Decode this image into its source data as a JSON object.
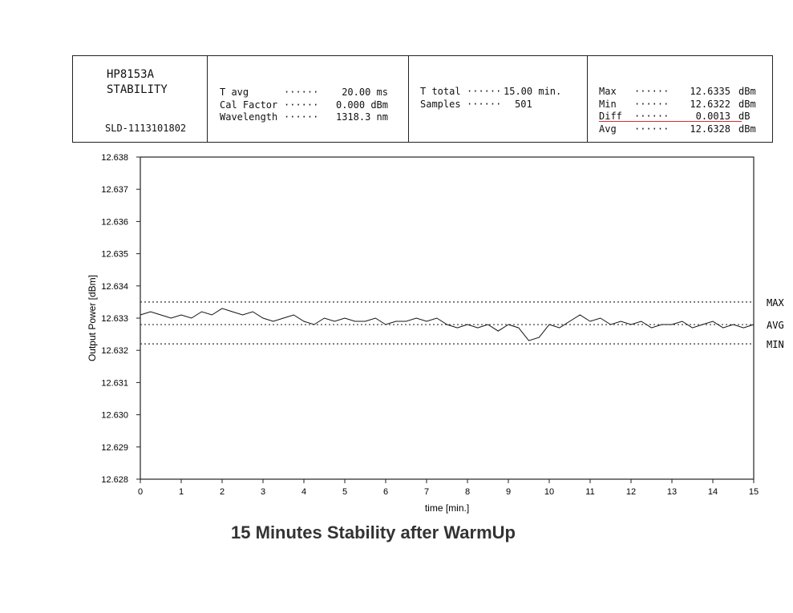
{
  "header": {
    "device": {
      "model": "HP8153A",
      "mode": "STABILITY",
      "serial": "SLD-1113101802"
    },
    "acquisition": [
      {
        "label": "T avg",
        "dots": "······",
        "value": "20.00 ms"
      },
      {
        "label": "Cal Factor",
        "dots": "······",
        "value": "0.000 dBm"
      },
      {
        "label": "Wavelength",
        "dots": "······",
        "value": "1318.3 nm"
      }
    ],
    "timing": [
      {
        "label": "T total",
        "dots": "······",
        "value": "15.00 min."
      },
      {
        "label": "Samples",
        "dots": "······",
        "value": "501"
      }
    ],
    "stats": [
      {
        "label": "Max",
        "dots": "······",
        "value": "12.6335",
        "unit": "dBm"
      },
      {
        "label": "Min",
        "dots": "······",
        "value": "12.6322",
        "unit": "dBm"
      },
      {
        "label": "Diff",
        "dots": "······",
        "value": "0.0013",
        "unit": "dB"
      },
      {
        "label": "Avg",
        "dots": "······",
        "value": "12.6328",
        "unit": "dBm"
      }
    ],
    "diff_highlight_color": "#d03030"
  },
  "chart_data": {
    "type": "line",
    "title": "15 Minutes Stability after WarmUp",
    "xlabel": "time [min.]",
    "ylabel": "Output Power [dBm]",
    "xlim": [
      0,
      15
    ],
    "ylim": [
      12.628,
      12.638
    ],
    "xticks": [
      0,
      1,
      2,
      3,
      4,
      5,
      6,
      7,
      8,
      9,
      10,
      11,
      12,
      13,
      14,
      15
    ],
    "yticks": [
      "12.628",
      "12.629",
      "12.630",
      "12.631",
      "12.632",
      "12.633",
      "12.634",
      "12.635",
      "12.636",
      "12.637",
      "12.638"
    ],
    "grid": false,
    "reference_lines": [
      {
        "label": "MAX",
        "value": 12.6335
      },
      {
        "label": "AVG",
        "value": 12.6328
      },
      {
        "label": "MIN",
        "value": 12.6322
      }
    ],
    "series": [
      {
        "x": [
          0,
          0.25,
          0.5,
          0.75,
          1,
          1.25,
          1.5,
          1.75,
          2,
          2.25,
          2.5,
          2.75,
          3,
          3.25,
          3.5,
          3.75,
          4,
          4.25,
          4.5,
          4.75,
          5,
          5.25,
          5.5,
          5.75,
          6,
          6.25,
          6.5,
          6.75,
          7,
          7.25,
          7.5,
          7.75,
          8,
          8.25,
          8.5,
          8.75,
          9,
          9.25,
          9.5,
          9.75,
          10,
          10.25,
          10.5,
          10.75,
          11,
          11.25,
          11.5,
          11.75,
          12,
          12.25,
          12.5,
          12.75,
          13,
          13.25,
          13.5,
          13.75,
          14,
          14.25,
          14.5,
          14.75,
          15
        ],
        "values": [
          12.6331,
          12.6332,
          12.6331,
          12.633,
          12.6331,
          12.633,
          12.6332,
          12.6331,
          12.6333,
          12.6332,
          12.6331,
          12.6332,
          12.633,
          12.6329,
          12.633,
          12.6331,
          12.6329,
          12.6328,
          12.633,
          12.6329,
          12.633,
          12.6329,
          12.6329,
          12.633,
          12.6328,
          12.6329,
          12.6329,
          12.633,
          12.6329,
          12.633,
          12.6328,
          12.6327,
          12.6328,
          12.6327,
          12.6328,
          12.6326,
          12.6328,
          12.6327,
          12.6323,
          12.6324,
          12.6328,
          12.6327,
          12.6329,
          12.6331,
          12.6329,
          12.633,
          12.6328,
          12.6329,
          12.6328,
          12.6329,
          12.6327,
          12.6328,
          12.6328,
          12.6329,
          12.6327,
          12.6328,
          12.6329,
          12.6327,
          12.6328,
          12.6327,
          12.6328
        ]
      }
    ]
  }
}
